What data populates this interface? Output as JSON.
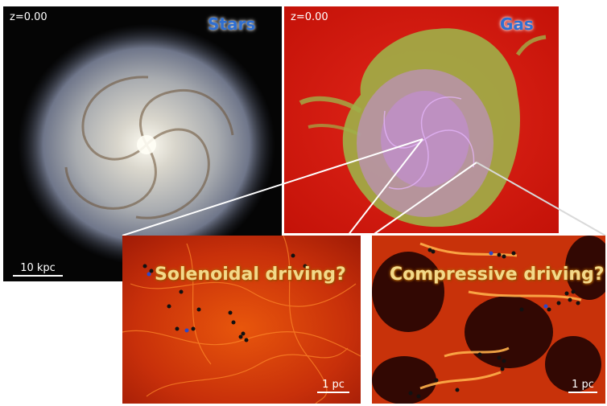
{
  "panels": {
    "stars": {
      "redshift": "z=0.00",
      "title": "Stars",
      "scale": "10 kpc"
    },
    "gas": {
      "redshift": "z=0.00",
      "title": "Gas"
    },
    "solenoidal": {
      "question": "Solenoidal driving?",
      "scale": "1 pc"
    },
    "compressive": {
      "question": "Compressive driving?",
      "scale": "1 pc"
    }
  },
  "colors": {
    "title": "#2f6fd1",
    "gas_background": "#d61a10",
    "gas_disk": "#9fb048",
    "gas_dense": "#c58be6",
    "turbulence": "#e24a08",
    "sink_particles": "#111111",
    "sink_particles_blue": "#2b49c9"
  }
}
